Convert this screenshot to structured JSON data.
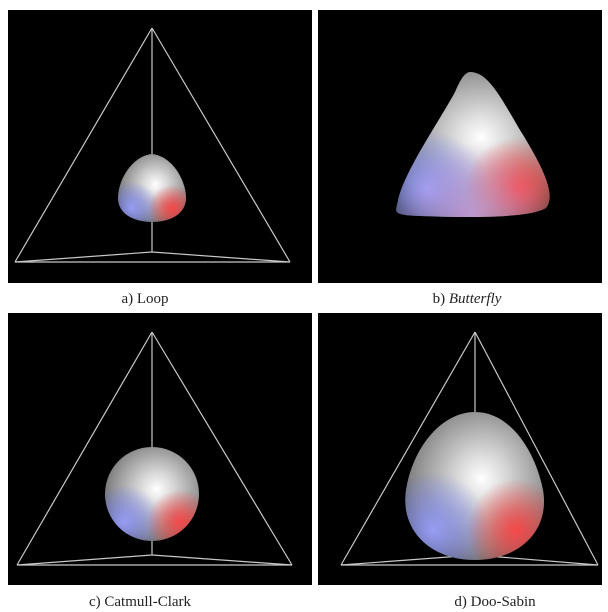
{
  "panels": [
    {
      "prefix": "a)",
      "name": "Loop"
    },
    {
      "prefix": "b)",
      "name": "Butterfly"
    },
    {
      "prefix": "c)",
      "name": "Catmull-Clark"
    },
    {
      "prefix": "d)",
      "name": "Doo-Sabin"
    }
  ]
}
